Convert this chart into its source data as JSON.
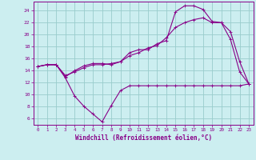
{
  "background_color": "#cceef0",
  "grid_color": "#99cccc",
  "line_color": "#880088",
  "marker_color": "#880088",
  "xlabel": "Windchill (Refroidissement éolien,°C)",
  "xlim": [
    -0.5,
    23.5
  ],
  "ylim": [
    5.0,
    25.5
  ],
  "yticks": [
    6,
    8,
    10,
    12,
    14,
    16,
    18,
    20,
    22,
    24
  ],
  "xticks": [
    0,
    1,
    2,
    3,
    4,
    5,
    6,
    7,
    8,
    9,
    10,
    11,
    12,
    13,
    14,
    15,
    16,
    17,
    18,
    19,
    20,
    21,
    22,
    23
  ],
  "series1_x": [
    0,
    1,
    2,
    3,
    4,
    5,
    6,
    7,
    8,
    9,
    10,
    11,
    12,
    13,
    14,
    15,
    16,
    17,
    18,
    19,
    20,
    21,
    22,
    23
  ],
  "series1_y": [
    14.7,
    15.0,
    15.0,
    12.8,
    9.8,
    8.1,
    6.8,
    5.5,
    8.2,
    10.7,
    11.5,
    11.5,
    11.5,
    11.5,
    11.5,
    11.5,
    11.5,
    11.5,
    11.5,
    11.5,
    11.5,
    11.5,
    11.5,
    11.8
  ],
  "series2_x": [
    0,
    1,
    2,
    3,
    4,
    5,
    6,
    7,
    8,
    9,
    10,
    11,
    12,
    13,
    14,
    15,
    16,
    17,
    18,
    19,
    20,
    21,
    22,
    23
  ],
  "series2_y": [
    14.7,
    15.0,
    15.0,
    13.0,
    14.0,
    14.8,
    15.2,
    15.2,
    15.0,
    15.5,
    17.0,
    17.5,
    17.5,
    18.5,
    19.0,
    23.8,
    24.8,
    24.8,
    24.2,
    22.2,
    22.0,
    19.2,
    13.8,
    11.8
  ],
  "series3_x": [
    0,
    1,
    2,
    3,
    4,
    5,
    6,
    7,
    8,
    9,
    10,
    11,
    12,
    13,
    14,
    15,
    16,
    17,
    18,
    19,
    20,
    21,
    22,
    23
  ],
  "series3_y": [
    14.7,
    15.0,
    15.0,
    13.2,
    13.8,
    14.5,
    15.0,
    15.0,
    15.2,
    15.5,
    16.5,
    17.0,
    17.8,
    18.2,
    19.5,
    21.2,
    22.0,
    22.5,
    22.8,
    22.0,
    22.0,
    20.5,
    15.5,
    11.8
  ]
}
